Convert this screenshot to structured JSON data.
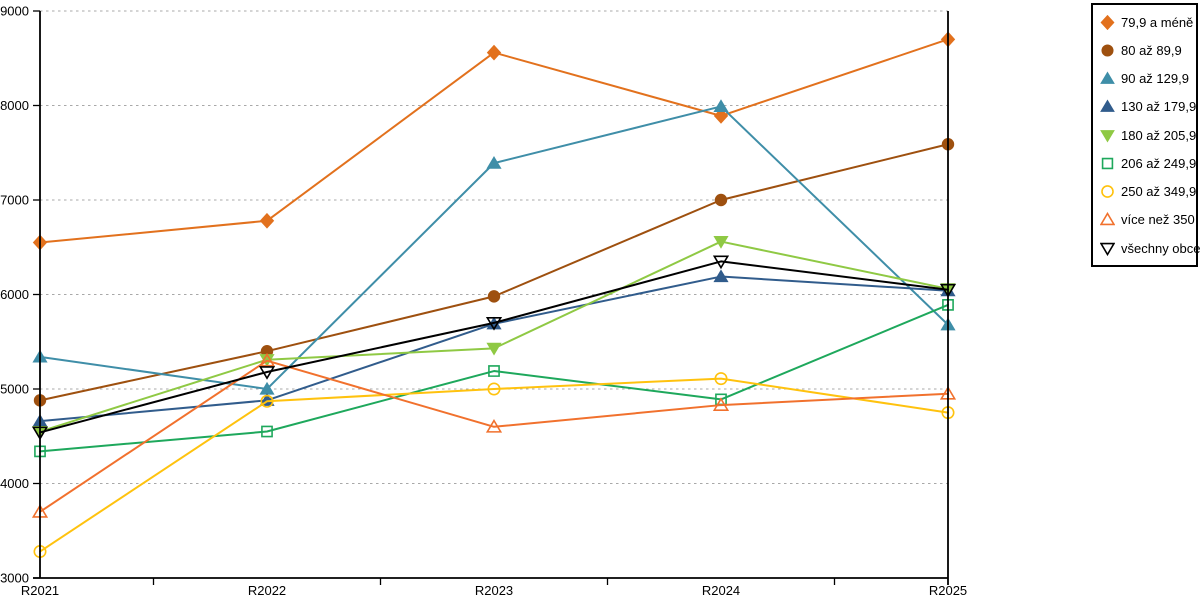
{
  "chart_data": {
    "type": "line",
    "title": "",
    "xlabel": "",
    "ylabel": "",
    "categories": [
      "R2021",
      "R2022",
      "R2023",
      "R2024",
      "R2025"
    ],
    "ylim": [
      3000,
      9000
    ],
    "y_ticks": [
      3000,
      4000,
      5000,
      6000,
      7000,
      8000,
      9000
    ],
    "grid": "horizontal-dotted",
    "grid_color": "#a8a8a8",
    "axis_color": "#000000",
    "legend_position": "outside-top-right",
    "series": [
      {
        "name": "79,9 a méně",
        "color": "#e2711d",
        "marker": "diamond",
        "fill": "filled",
        "values": [
          6550,
          6780,
          8560,
          7890,
          8700
        ]
      },
      {
        "name": "80 až 89,9",
        "color": "#9e500f",
        "marker": "circle",
        "fill": "filled",
        "values": [
          4880,
          5400,
          5980,
          7000,
          7590
        ]
      },
      {
        "name": "90 až 129,9",
        "color": "#3f8ea8",
        "marker": "triangle-up",
        "fill": "filled",
        "values": [
          5340,
          5000,
          7390,
          7990,
          5680
        ]
      },
      {
        "name": "130 až 179,9",
        "color": "#315c8c",
        "marker": "triangle-up",
        "fill": "filled",
        "values": [
          4660,
          4880,
          5690,
          6190,
          6040
        ]
      },
      {
        "name": "180 až 205,9",
        "color": "#8fc944",
        "marker": "triangle-down",
        "fill": "filled",
        "values": [
          4550,
          5310,
          5430,
          6560,
          6060
        ]
      },
      {
        "name": "206 až 249,9",
        "color": "#1ea85c",
        "marker": "square",
        "fill": "hollow",
        "values": [
          4340,
          4550,
          5190,
          4890,
          5890
        ]
      },
      {
        "name": "250 až 349,9",
        "color": "#ffc20e",
        "marker": "circle",
        "fill": "hollow",
        "values": [
          3280,
          4870,
          5000,
          5110,
          4750
        ]
      },
      {
        "name": "více než 350",
        "color": "#f1712d",
        "marker": "triangle-up",
        "fill": "hollow",
        "values": [
          3700,
          5300,
          4600,
          4830,
          4950
        ]
      },
      {
        "name": "všechny obce",
        "color": "#000000",
        "marker": "triangle-down",
        "fill": "hollow",
        "values": [
          4540,
          5180,
          5700,
          6350,
          6050
        ]
      }
    ]
  }
}
